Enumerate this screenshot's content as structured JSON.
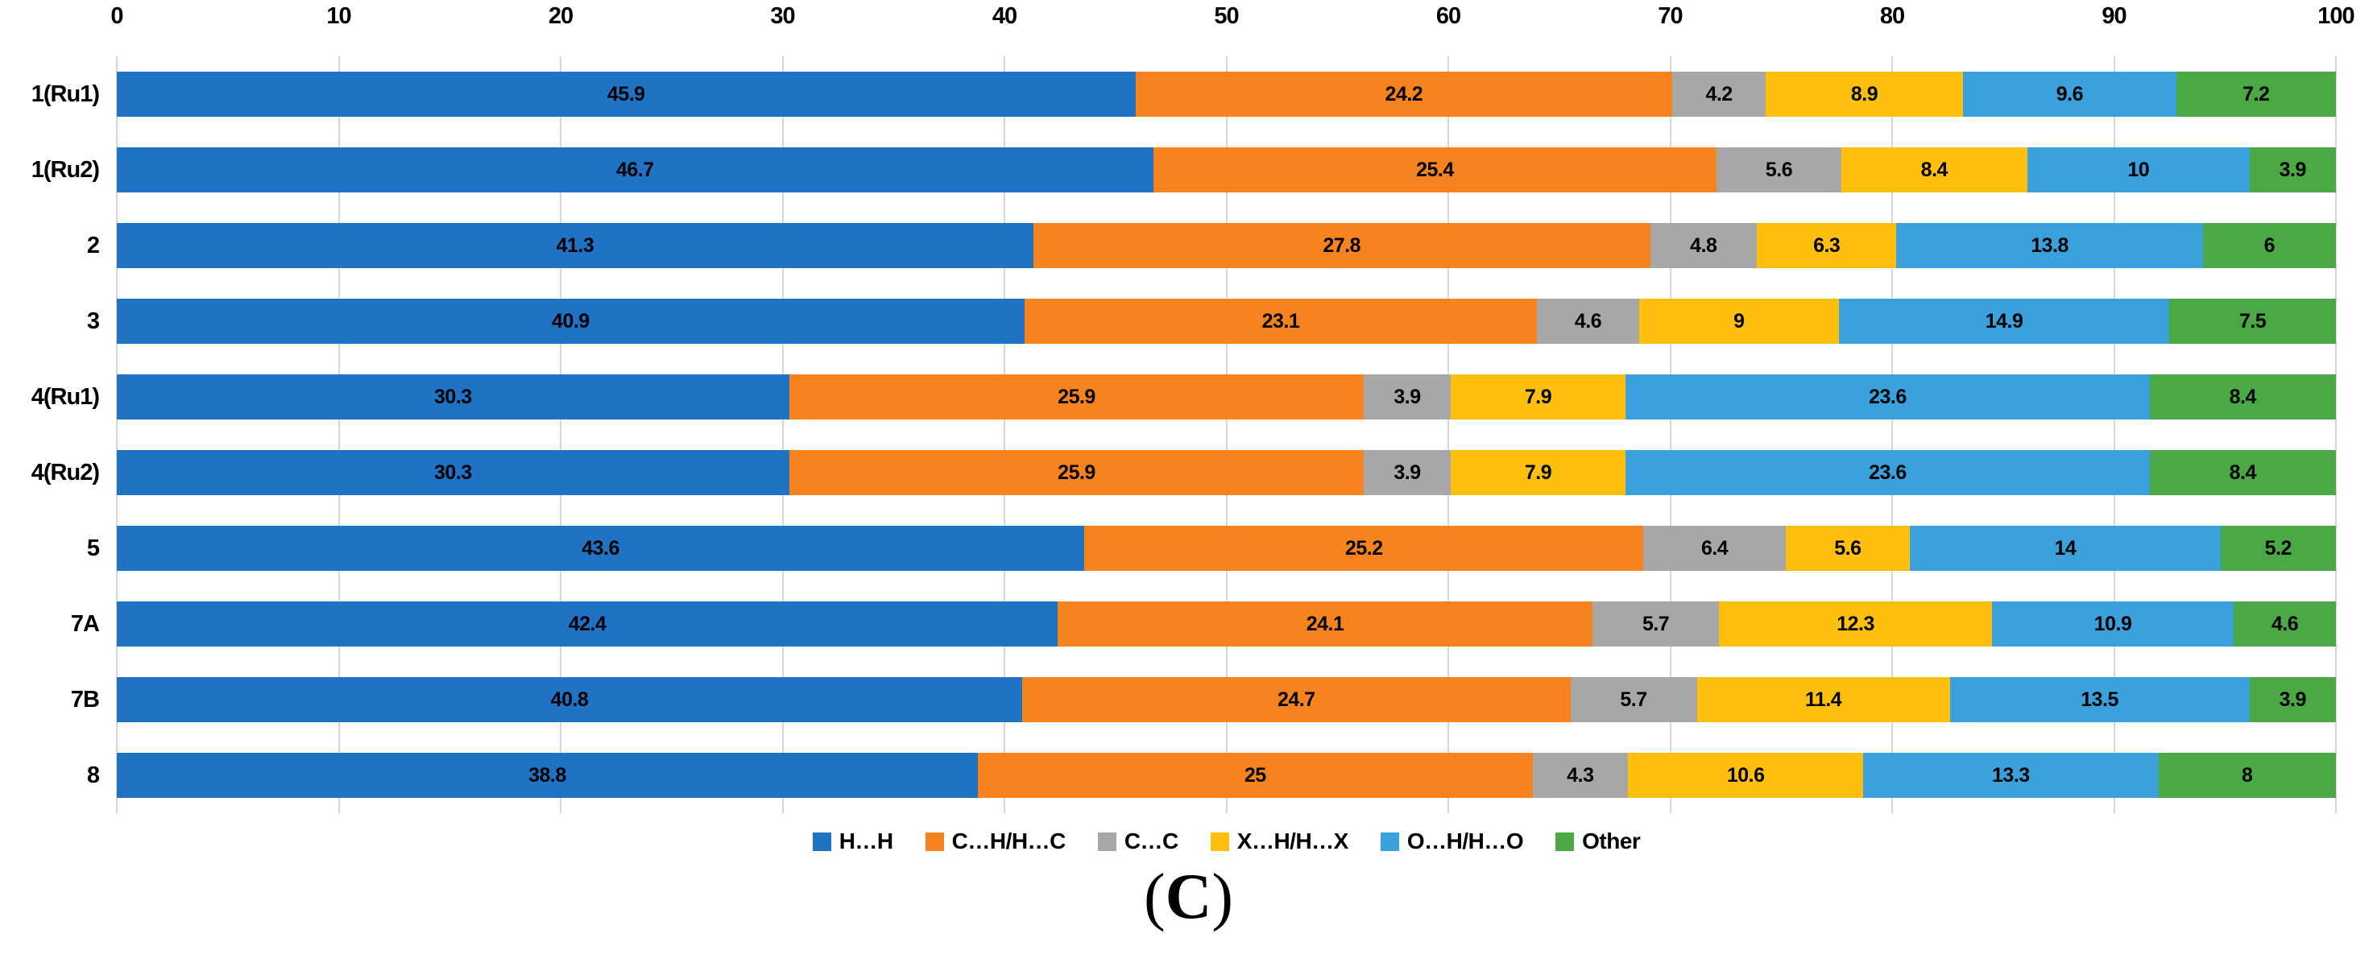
{
  "chart_data": {
    "type": "bar",
    "orientation": "horizontal",
    "stacked": true,
    "grid": true,
    "legend_position": "bottom",
    "value_labels": "inside-center",
    "xlim": [
      0,
      100
    ],
    "x_ticks": [
      0,
      10,
      20,
      30,
      40,
      50,
      60,
      70,
      80,
      90,
      100
    ],
    "categories": [
      "1(Ru1)",
      "1(Ru2)",
      "2",
      "3",
      "4(Ru1)",
      "4(Ru2)",
      "5",
      "7A",
      "7B",
      "8"
    ],
    "series": [
      {
        "name": "H…H",
        "color": "#1f72c4",
        "values": [
          45.9,
          46.7,
          41.3,
          40.9,
          30.3,
          30.3,
          43.6,
          42.4,
          40.8,
          38.8
        ]
      },
      {
        "name": "C…H/H…C",
        "color": "#f6831e",
        "values": [
          24.2,
          25.4,
          27.8,
          23.1,
          25.9,
          25.9,
          25.2,
          24.1,
          24.7,
          25
        ]
      },
      {
        "name": "C…C",
        "color": "#a7a7a7",
        "values": [
          4.2,
          5.6,
          4.8,
          4.6,
          3.9,
          3.9,
          6.4,
          5.7,
          5.7,
          4.3
        ]
      },
      {
        "name": "X…H/H…X",
        "color": "#fec00d",
        "values": [
          8.9,
          8.4,
          6.3,
          9,
          7.9,
          7.9,
          5.6,
          12.3,
          11.4,
          10.6
        ]
      },
      {
        "name": "O…H/H…O",
        "color": "#3aa1dc",
        "values": [
          9.6,
          10,
          13.8,
          14.9,
          23.6,
          23.6,
          14,
          10.9,
          13.5,
          13.3
        ]
      },
      {
        "name": "Other",
        "color": "#4aa944",
        "values": [
          7.2,
          3.9,
          6,
          7.5,
          8.4,
          8.4,
          5.2,
          4.6,
          3.9,
          8
        ]
      }
    ],
    "colors": {
      "gridline": "#d6d6d6",
      "label_text": "#000000"
    }
  },
  "caption": {
    "open": "(",
    "letter": "C",
    "close": ")"
  }
}
